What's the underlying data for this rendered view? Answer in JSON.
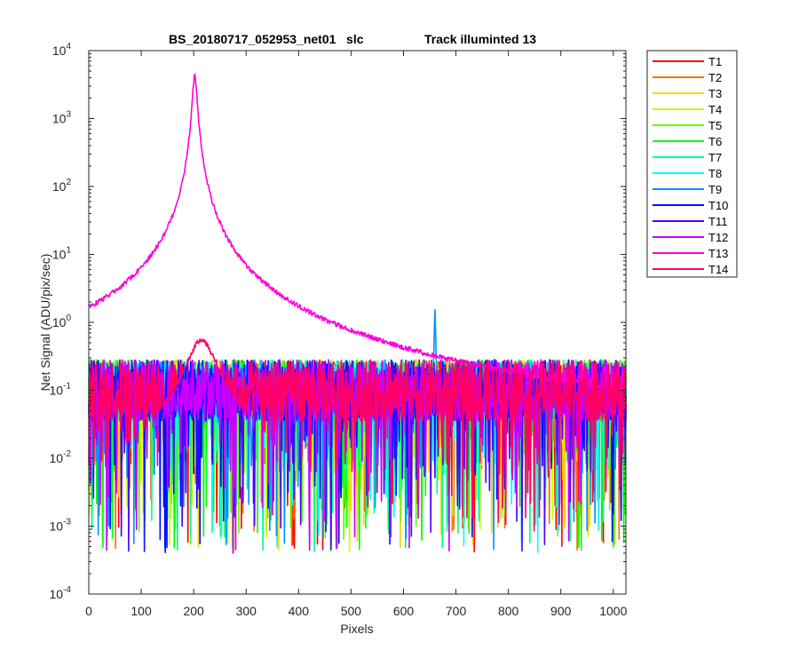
{
  "chart_data": {
    "type": "line",
    "title_left": "BS_20180717_052953_net01   slc",
    "title_right": "Track illuminted 13",
    "xlabel": "Pixels",
    "ylabel": "Net Signal (ADU/pix/sec)",
    "xlim": [
      0,
      1024
    ],
    "ylim": [
      0.0001,
      10000
    ],
    "yscale": "log",
    "grid": false,
    "legend_position": "outside-right",
    "x_ticks": [
      "0",
      "100",
      "200",
      "300",
      "400",
      "500",
      "600",
      "700",
      "800",
      "900",
      "1000"
    ],
    "y_tick_exponents": [
      "-4",
      "-3",
      "-2",
      "-1",
      "0",
      "1",
      "2",
      "3",
      "4"
    ],
    "y_tick_base": "10",
    "series": [
      {
        "name": "T1",
        "color": "#ff0000"
      },
      {
        "name": "T2",
        "color": "#ff7000"
      },
      {
        "name": "T3",
        "color": "#ffd500"
      },
      {
        "name": "T4",
        "color": "#c3ff00"
      },
      {
        "name": "T5",
        "color": "#5eff00"
      },
      {
        "name": "T6",
        "color": "#00ff06"
      },
      {
        "name": "T7",
        "color": "#00ff8e"
      },
      {
        "name": "T8",
        "color": "#00ffff"
      },
      {
        "name": "T9",
        "color": "#0093ff"
      },
      {
        "name": "T10",
        "color": "#0010ff"
      },
      {
        "name": "T11",
        "color": "#4a00ff"
      },
      {
        "name": "T12",
        "color": "#cc00ff"
      },
      {
        "name": "T13",
        "color": "#ff00dc"
      },
      {
        "name": "T14",
        "color": "#ff0066"
      }
    ],
    "peaks": [
      {
        "series": "T13",
        "x": 202,
        "y": 4600
      },
      {
        "series": "T9",
        "x": 660,
        "y": 1.6
      },
      {
        "series": "T14",
        "x": 215,
        "y": 0.6
      }
    ],
    "baseline_typical": 0.1,
    "baseline_range": [
      0.00035,
      0.4
    ]
  }
}
